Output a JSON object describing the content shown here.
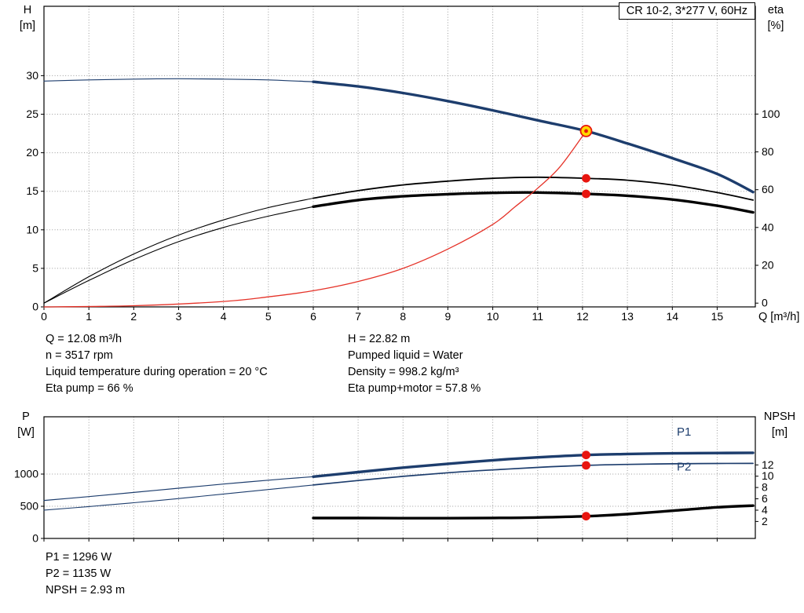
{
  "title_box": {
    "label": "CR 10-2, 3*277 V, 60Hz"
  },
  "axes_labels": {
    "top_left_line1": "H",
    "top_left_line2": "[m]",
    "top_right_line1": "eta",
    "top_right_line2": "[%]",
    "x_label": "Q [m³/h]",
    "bottom_left_line1": "P",
    "bottom_left_line2": "[W]",
    "bottom_right_line1": "NPSH",
    "bottom_right_line2": "[m]"
  },
  "operating_point": {
    "q": "Q = 12.08 m³/h",
    "n": "n = 3517 rpm",
    "liquid_temp": "Liquid temperature during operation = 20 °C",
    "eta_pump": "Eta pump = 66 %",
    "h": "H = 22.82 m",
    "pumped_liquid": "Pumped liquid = Water",
    "density": "Density = 998.2 kg/m³",
    "eta_pump_motor": "Eta pump+motor = 57.8 %",
    "p1": "P1 = 1296 W",
    "p2": "P2 = 1135 W",
    "npsh": "NPSH = 2.93 m"
  },
  "colors": {
    "curve_blue": "#1d3d6d",
    "curve_black": "#000000",
    "curve_red": "#e53228",
    "marker_red": "#e8150f",
    "marker_yellow": "#ffd800",
    "grid": "#9b9b9b"
  },
  "chart_data": [
    {
      "type": "line",
      "title": "CR 10-2, 3*277 V, 60Hz",
      "grid_color": "#9b9b9b",
      "x_axis": {
        "label": "Q [m³/h]",
        "min": 0,
        "max": 15.85,
        "ticks": [
          0,
          1,
          2,
          3,
          4,
          5,
          6,
          7,
          8,
          9,
          10,
          11,
          12,
          13,
          14,
          15
        ],
        "grid": [
          1,
          2,
          3,
          4,
          5,
          6,
          7,
          8,
          9,
          10,
          11,
          12,
          13,
          14,
          15
        ],
        "show_tick_labels": true
      },
      "y_left": {
        "label": "H [m]",
        "min": 0,
        "max": 39,
        "ticks": [
          0,
          5,
          10,
          15,
          20,
          25,
          30
        ],
        "grid": [
          5,
          10,
          15,
          20,
          25,
          30
        ]
      },
      "y_right": {
        "label": "eta [%]",
        "min": -2,
        "max": 157,
        "ticks": [
          0,
          20,
          40,
          60,
          80,
          100
        ]
      },
      "series": [
        {
          "id": "head-curve-lead",
          "name": "H(Q) low-flow segment",
          "axis": "left",
          "color": "#1d3d6d",
          "width": 1.2,
          "points": [
            [
              0,
              29.3
            ],
            [
              1,
              29.45
            ],
            [
              2,
              29.55
            ],
            [
              3,
              29.6
            ],
            [
              4,
              29.55
            ],
            [
              5,
              29.45
            ],
            [
              6,
              29.2
            ]
          ]
        },
        {
          "id": "head-curve",
          "name": "H(Q) pump curve",
          "axis": "left",
          "color": "#1d3d6d",
          "width": 3.4,
          "points": [
            [
              6,
              29.2
            ],
            [
              7,
              28.6
            ],
            [
              8,
              27.75
            ],
            [
              9,
              26.7
            ],
            [
              10,
              25.5
            ],
            [
              11,
              24.2
            ],
            [
              12.08,
              22.82
            ],
            [
              13,
              21.2
            ],
            [
              14,
              19.3
            ],
            [
              15,
              17.25
            ],
            [
              15.8,
              14.9
            ]
          ]
        },
        {
          "id": "eta-pump-curve-lead",
          "name": "Eta pump low-flow segment",
          "axis": "right",
          "color": "#000000",
          "width": 1.1,
          "points": [
            [
              0,
              0
            ],
            [
              1,
              14
            ],
            [
              2,
              26
            ],
            [
              3,
              36
            ],
            [
              4,
              44
            ],
            [
              5,
              50.5
            ],
            [
              6,
              55.5
            ]
          ]
        },
        {
          "id": "eta-pump-curve",
          "name": "Eta pump",
          "axis": "right",
          "color": "#000000",
          "width": 1.8,
          "points": [
            [
              6,
              55.5
            ],
            [
              7,
              59.5
            ],
            [
              8,
              62.5
            ],
            [
              9,
              64.5
            ],
            [
              10,
              66
            ],
            [
              11,
              66.6
            ],
            [
              12.08,
              66
            ],
            [
              13,
              65
            ],
            [
              14,
              62.5
            ],
            [
              15,
              58.5
            ],
            [
              15.8,
              54.5
            ]
          ]
        },
        {
          "id": "eta-pump-motor-curve-lead",
          "name": "Eta pump+motor low-flow segment",
          "axis": "right",
          "color": "#000000",
          "width": 1.1,
          "points": [
            [
              0,
              0
            ],
            [
              1,
              12
            ],
            [
              2,
              23
            ],
            [
              3,
              32.5
            ],
            [
              4,
              40
            ],
            [
              5,
              46
            ],
            [
              6,
              51
            ]
          ]
        },
        {
          "id": "eta-pump-motor-curve",
          "name": "Eta pump+motor",
          "axis": "right",
          "color": "#000000",
          "width": 3.4,
          "points": [
            [
              6,
              51
            ],
            [
              7,
              54.5
            ],
            [
              8,
              56.5
            ],
            [
              9,
              57.6
            ],
            [
              10,
              58.3
            ],
            [
              11,
              58.5
            ],
            [
              12.08,
              57.8
            ],
            [
              13,
              56.8
            ],
            [
              14,
              54.8
            ],
            [
              15,
              51.5
            ],
            [
              15.8,
              48
            ]
          ]
        },
        {
          "id": "system-curve",
          "name": "Duty line to operating point",
          "axis": "left",
          "color": "#e53228",
          "width": 1.3,
          "points": [
            [
              0,
              0
            ],
            [
              2,
              0.15
            ],
            [
              4,
              0.7
            ],
            [
              5,
              1.3
            ],
            [
              6,
              2.1
            ],
            [
              7,
              3.3
            ],
            [
              8,
              5
            ],
            [
              9,
              7.5
            ],
            [
              10,
              10.7
            ],
            [
              10.5,
              13
            ],
            [
              11,
              15.4
            ],
            [
              11.5,
              18.2
            ],
            [
              12.08,
              22.82
            ]
          ]
        }
      ],
      "markers": [
        {
          "style": "duty",
          "axis": "left",
          "x": 12.08,
          "y": 22.82,
          "name": "duty-point"
        },
        {
          "style": "dot",
          "axis": "right",
          "x": 12.08,
          "y": 66,
          "name": "eta-pump-point"
        },
        {
          "style": "dot",
          "axis": "right",
          "x": 12.08,
          "y": 57.8,
          "name": "eta-pump-motor-point"
        }
      ],
      "annotations": []
    },
    {
      "type": "line",
      "title": "",
      "grid_color": "#9b9b9b",
      "x_axis": {
        "label": "",
        "min": 0,
        "max": 15.85,
        "ticks": [
          0,
          1,
          2,
          3,
          4,
          5,
          6,
          7,
          8,
          9,
          10,
          11,
          12,
          13,
          14,
          15
        ],
        "grid": [
          1,
          2,
          3,
          4,
          5,
          6,
          7,
          8,
          9,
          10,
          11,
          12,
          13,
          14,
          15
        ],
        "show_tick_labels": false
      },
      "y_left": {
        "label": "P [W]",
        "min": 0,
        "max": 1890,
        "ticks": [
          0,
          500,
          1000
        ],
        "grid": [
          500,
          1000
        ]
      },
      "y_right": {
        "label": "NPSH [m]",
        "min": -1,
        "max": 20.5,
        "ticks": [
          2,
          4,
          6,
          8,
          10,
          12
        ]
      },
      "series": [
        {
          "id": "p1-curve-lead",
          "name": "P1 low-flow segment",
          "axis": "left",
          "color": "#1d3d6d",
          "width": 1.2,
          "points": [
            [
              0,
              590
            ],
            [
              1,
              650
            ],
            [
              2,
              715
            ],
            [
              3,
              780
            ],
            [
              4,
              845
            ],
            [
              5,
              905
            ],
            [
              6,
              960
            ]
          ]
        },
        {
          "id": "p1-curve",
          "name": "P1 input power",
          "axis": "left",
          "color": "#1d3d6d",
          "width": 3.4,
          "points": [
            [
              6,
              960
            ],
            [
              7,
              1030
            ],
            [
              8,
              1100
            ],
            [
              9,
              1160
            ],
            [
              10,
              1215
            ],
            [
              11,
              1260
            ],
            [
              12.08,
              1296
            ],
            [
              13,
              1312
            ],
            [
              14,
              1322
            ],
            [
              15,
              1327
            ],
            [
              15.8,
              1330
            ]
          ]
        },
        {
          "id": "p2-curve-lead",
          "name": "P2 low-flow segment",
          "axis": "left",
          "color": "#1d3d6d",
          "width": 1.1,
          "points": [
            [
              0,
              440
            ],
            [
              1,
              495
            ],
            [
              2,
              555
            ],
            [
              3,
              620
            ],
            [
              4,
              690
            ],
            [
              5,
              760
            ],
            [
              6,
              830
            ]
          ]
        },
        {
          "id": "p2-curve",
          "name": "P2 shaft power",
          "axis": "left",
          "color": "#1d3d6d",
          "width": 1.7,
          "points": [
            [
              6,
              830
            ],
            [
              7,
              900
            ],
            [
              8,
              965
            ],
            [
              9,
              1020
            ],
            [
              10,
              1065
            ],
            [
              11,
              1103
            ],
            [
              12.08,
              1135
            ],
            [
              13,
              1150
            ],
            [
              14,
              1160
            ],
            [
              15,
              1165
            ],
            [
              15.8,
              1166
            ]
          ]
        },
        {
          "id": "npsh-curve",
          "name": "NPSH",
          "axis": "right",
          "color": "#000000",
          "width": 3.4,
          "points": [
            [
              6,
              2.6
            ],
            [
              7,
              2.6
            ],
            [
              8,
              2.58
            ],
            [
              9,
              2.58
            ],
            [
              10,
              2.62
            ],
            [
              11,
              2.7
            ],
            [
              12.08,
              2.93
            ],
            [
              13,
              3.3
            ],
            [
              14,
              3.9
            ],
            [
              15,
              4.5
            ],
            [
              15.8,
              4.8
            ]
          ]
        }
      ],
      "markers": [
        {
          "style": "dot",
          "axis": "left",
          "x": 12.08,
          "y": 1296,
          "name": "p1-point"
        },
        {
          "style": "dot",
          "axis": "left",
          "x": 12.08,
          "y": 1135,
          "name": "p2-point"
        },
        {
          "style": "dot",
          "axis": "right",
          "x": 12.08,
          "y": 2.93,
          "name": "npsh-point"
        }
      ],
      "annotations": [
        {
          "text": "P1",
          "x": 14.1,
          "y": 1600,
          "axis": "left",
          "color": "#1d3d6d"
        },
        {
          "text": "P2",
          "x": 14.1,
          "y": 1055,
          "axis": "left",
          "color": "#1d3d6d"
        }
      ]
    }
  ]
}
